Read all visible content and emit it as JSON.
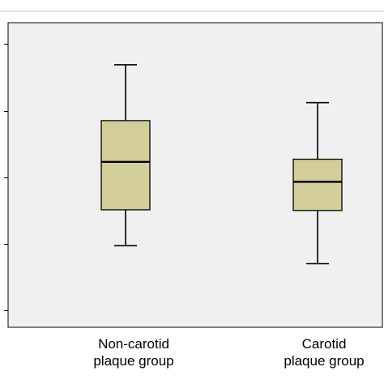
{
  "chart_data": {
    "type": "boxplot",
    "categories": [
      "Non-carotid\nplaque group",
      "Carotid\nplaque group"
    ],
    "series": [
      {
        "boxes": [
          {
            "min": 0.97,
            "q1": 1.51,
            "median": 2.23,
            "q3": 2.85,
            "max": 3.69
          },
          {
            "min": 0.7,
            "q1": 1.5,
            "median": 1.93,
            "q3": 2.27,
            "max": 3.12
          }
        ]
      }
    ],
    "ylim": [
      0,
      4.2
    ],
    "yticks": [
      0,
      1,
      2,
      3,
      4
    ],
    "tick_labels_visible": false,
    "grid": false,
    "colors": {
      "box_fill": "#d3cd99",
      "stroke": "#000000",
      "plot_bg": "#f0f0f0",
      "frame": "#000000",
      "top_rule": "#bdbdbd"
    }
  }
}
